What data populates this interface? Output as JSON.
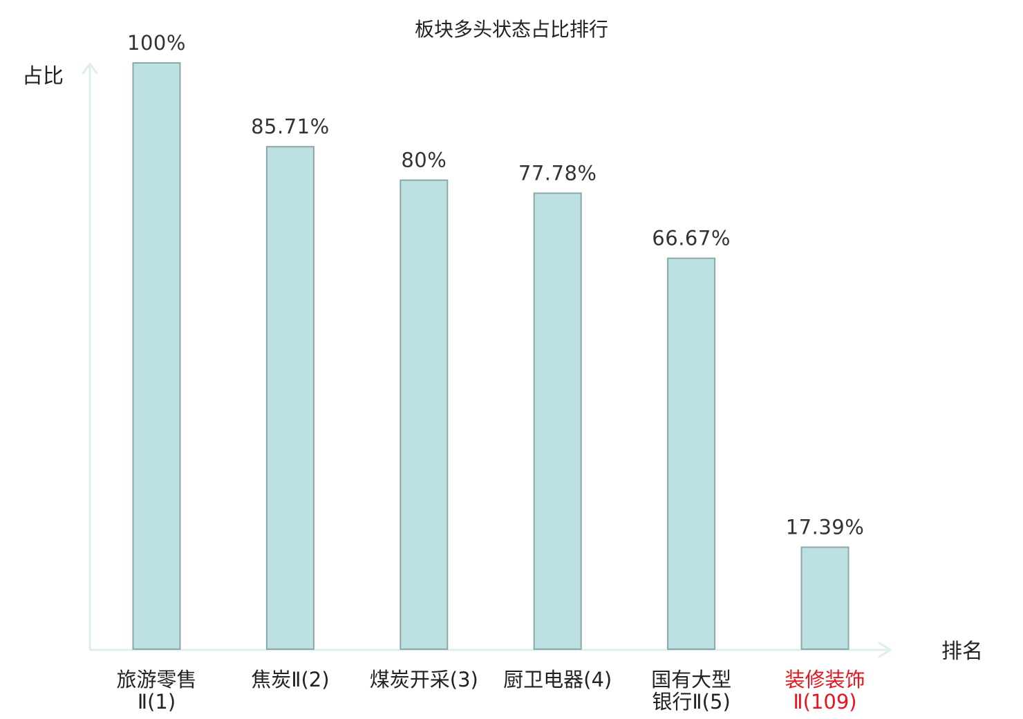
{
  "chart_data": {
    "type": "bar",
    "title": "板块多头状态占比排行",
    "ylabel": "占比",
    "xlabel": "排名",
    "ylim": [
      0,
      100
    ],
    "grid": false,
    "categories": [
      {
        "lines": [
          "旅游零售",
          "Ⅱ(1)"
        ],
        "highlight": false
      },
      {
        "lines": [
          "焦炭Ⅱ(2)"
        ],
        "highlight": false
      },
      {
        "lines": [
          "煤炭开采(3)"
        ],
        "highlight": false
      },
      {
        "lines": [
          "厨卫电器(4)"
        ],
        "highlight": false
      },
      {
        "lines": [
          "国有大型",
          "银行Ⅱ(5)"
        ],
        "highlight": false
      },
      {
        "lines": [
          "装修装饰",
          "Ⅱ(109)"
        ],
        "highlight": true
      }
    ],
    "values": [
      100,
      85.71,
      80,
      77.78,
      66.67,
      17.39
    ],
    "value_labels": [
      "100%",
      "85.71%",
      "80%",
      "77.78%",
      "66.67%",
      "17.39%"
    ]
  },
  "colors": {
    "bar_fill": "#bde0e2",
    "bar_stroke": "#8aa8aa",
    "axis": "#dcefec",
    "text": "#222222",
    "highlight": "#e8141e"
  }
}
